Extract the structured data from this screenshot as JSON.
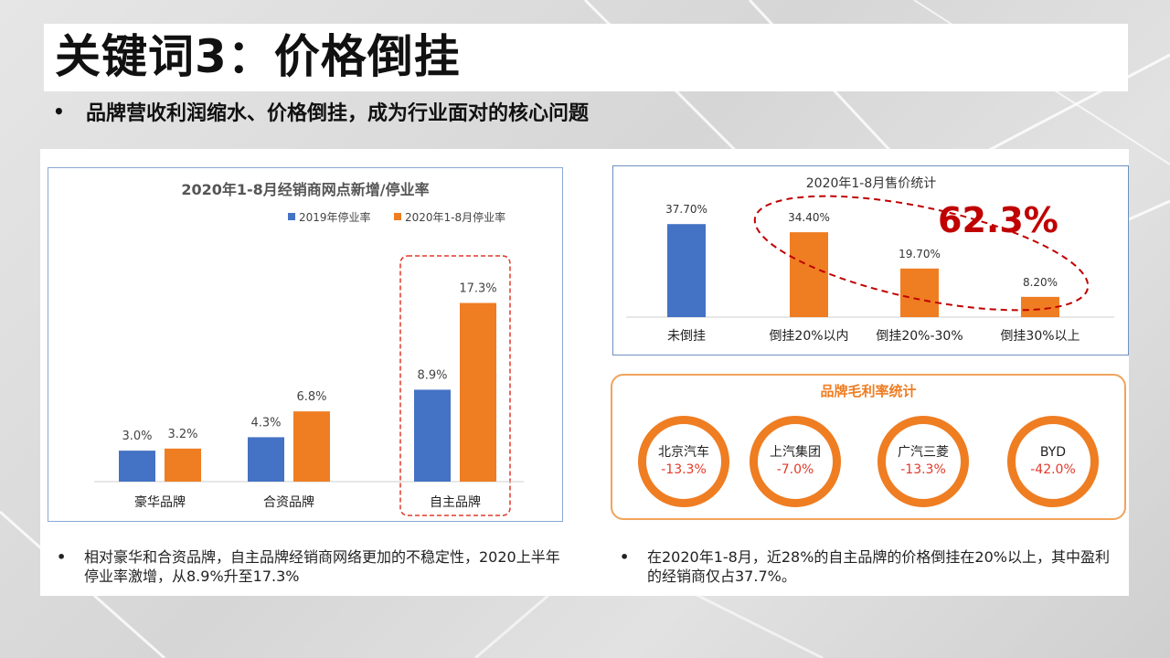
{
  "title": "关键词3：价格倒挂",
  "subtitle": "品牌营收利润缩水、价格倒挂，成为行业面对的核心问题",
  "colors": {
    "blue": "#4472c4",
    "orange": "#ef7d22",
    "highlight_red": "#c00000"
  },
  "chart_data": [
    {
      "type": "bar",
      "title": "2020年1-8月经销商网点新增/停业率",
      "categories": [
        "豪华品牌",
        "合资品牌",
        "自主品牌"
      ],
      "series": [
        {
          "name": "2019年停业率",
          "values": [
            3.0,
            4.3,
            8.9
          ],
          "labels": [
            "3.0%",
            "4.3%",
            "8.9%"
          ],
          "color": "#4472c4"
        },
        {
          "name": "2020年1-8月停业率",
          "values": [
            3.2,
            6.8,
            17.3
          ],
          "labels": [
            "3.2%",
            "6.8%",
            "17.3%"
          ],
          "color": "#ef7d22"
        }
      ],
      "ylim": [
        0,
        20
      ],
      "highlight_category": "自主品牌",
      "legend": "top-right",
      "grid": false
    },
    {
      "type": "bar",
      "title": "2020年1-8月售价统计",
      "categories": [
        "未倒挂",
        "倒挂20%以内",
        "倒挂20%-30%",
        "倒挂30%以上"
      ],
      "values": [
        37.7,
        34.4,
        19.7,
        8.2
      ],
      "labels": [
        "37.70%",
        "34.40%",
        "19.70%",
        "8.20%"
      ],
      "colors": [
        "#4472c4",
        "#ef7d22",
        "#ef7d22",
        "#ef7d22"
      ],
      "ylim": [
        0,
        40
      ],
      "annotation": "62.3%",
      "grid": false
    }
  ],
  "margin_stats": {
    "title": "品牌毛利率统计",
    "items": [
      {
        "name": "北京汽车",
        "value": "-13.3%"
      },
      {
        "name": "上汽集团",
        "value": "-7.0%"
      },
      {
        "name": "广汽三菱",
        "value": "-13.3%"
      },
      {
        "name": "BYD",
        "value": "-42.0%"
      }
    ]
  },
  "notes": {
    "bullet": "•",
    "left": "相对豪华和合资品牌，自主品牌经销商网络更加的不稳定性，2020上半年停业率激增，从8.9%升至17.3%",
    "right": "在2020年1-8月，近28%的自主品牌的价格倒挂在20%以上，其中盈利的经销商仅占37.7%。"
  }
}
